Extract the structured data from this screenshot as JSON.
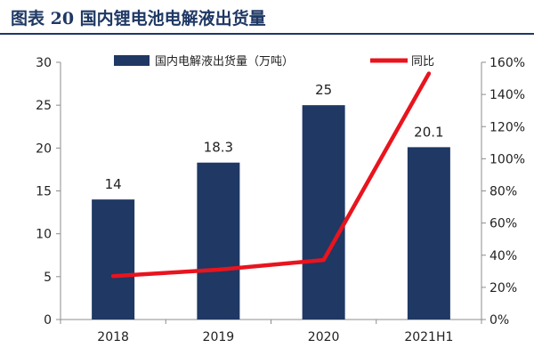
{
  "header": {
    "title": "图表 20  国内锂电池电解液出货量"
  },
  "chart_data": {
    "type": "bar",
    "categories": [
      "2018",
      "2019",
      "2020",
      "2021H1"
    ],
    "series": [
      {
        "name": "国内电解液出货量（万吨）",
        "type": "bar",
        "axis": "left",
        "values": [
          14,
          18.3,
          25,
          20.1
        ],
        "data_labels": [
          "14",
          "18.3",
          "25",
          "20.1"
        ],
        "color": "#1f3864"
      },
      {
        "name": "同比",
        "type": "line",
        "axis": "right",
        "values": [
          27,
          31,
          37,
          153
        ],
        "color": "#e8141e"
      }
    ],
    "y_left": {
      "min": 0,
      "max": 30,
      "ticks": [
        "0",
        "5",
        "10",
        "15",
        "20",
        "25",
        "30"
      ]
    },
    "y_right": {
      "min": 0,
      "max": 160,
      "ticks": [
        "0%",
        "20%",
        "40%",
        "60%",
        "80%",
        "100%",
        "120%",
        "140%",
        "160%"
      ]
    },
    "legend": {
      "placement": "top"
    },
    "grid": false
  }
}
